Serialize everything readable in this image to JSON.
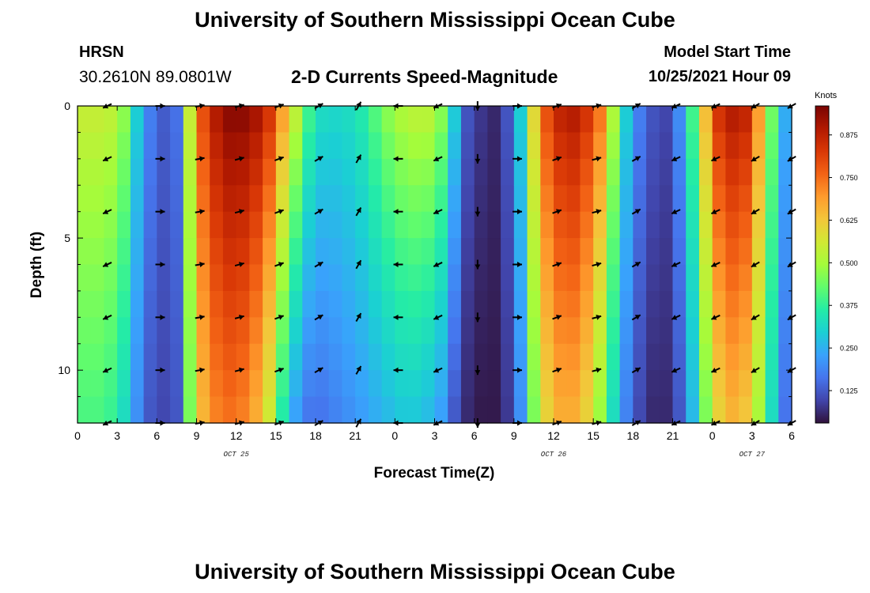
{
  "header": {
    "title": "University of Southern Mississippi Ocean Cube",
    "station": "HRSN",
    "coords": "30.2610N  89.0801W",
    "subtitle": "2-D Currents Speed-Magnitude",
    "start_label": "Model Start Time",
    "start_value": "10/25/2021 Hour 09"
  },
  "footer": {
    "title": "University of Southern Mississippi Ocean Cube"
  },
  "colors": {
    "background": "#ffffff",
    "arrow": "#000000",
    "colormap": [
      "#30123b",
      "#4145ab",
      "#4675ed",
      "#39a2fc",
      "#1bcfd4",
      "#24eca6",
      "#61fc6c",
      "#a4fc3b",
      "#d1e834",
      "#f3c63a",
      "#fe9b2d",
      "#f36315",
      "#d93806",
      "#b11901",
      "#7a0402"
    ]
  },
  "chart_data": {
    "type": "heatmap",
    "title": "2-D Currents Speed-Magnitude",
    "xlabel": "Forecast Time(Z)",
    "ylabel": "Depth (ft)",
    "x_unit": "forecast hours from 10/25 00Z",
    "xlim": [
      0,
      54
    ],
    "ylim": [
      0,
      12
    ],
    "y_inverted": true,
    "x_ticks": [
      0,
      3,
      6,
      9,
      12,
      15,
      18,
      21,
      24,
      27,
      30,
      33,
      36,
      39,
      42,
      45,
      48,
      51,
      54
    ],
    "x_tick_labels": [
      "0",
      "3",
      "6",
      "9",
      "12",
      "15",
      "18",
      "21",
      "0",
      "3",
      "6",
      "9",
      "12",
      "15",
      "18",
      "21",
      "0",
      "3",
      "6"
    ],
    "y_ticks": [
      0,
      5,
      10
    ],
    "y_tick_labels": [
      "0",
      "5",
      "10"
    ],
    "date_labels": [
      {
        "x": 12,
        "label": "OCT 25"
      },
      {
        "x": 36,
        "label": "OCT 26"
      },
      {
        "x": 51,
        "label": "OCT 27"
      }
    ],
    "colorbar": {
      "label": "Knots",
      "min": 0.03,
      "max": 0.96,
      "ticks": [
        0.125,
        0.25,
        0.375,
        0.5,
        0.625,
        0.75,
        0.875
      ],
      "tick_labels": [
        "0.125",
        "0.250",
        "0.375",
        "0.500",
        "0.625",
        "0.750",
        "0.875"
      ]
    },
    "x_bins": [
      0,
      1,
      2,
      3,
      4,
      5,
      6,
      7,
      8,
      9,
      10,
      11,
      12,
      13,
      14,
      15,
      16,
      17,
      18,
      19,
      20,
      21,
      22,
      23,
      24,
      25,
      26,
      27,
      28,
      29,
      30,
      31,
      32,
      33,
      34,
      35,
      36,
      37,
      38,
      39,
      40,
      41,
      42,
      43,
      44,
      45,
      46,
      47,
      48,
      49,
      50,
      51,
      52,
      53
    ],
    "surface_speed": [
      0.55,
      0.55,
      0.54,
      0.48,
      0.3,
      0.18,
      0.13,
      0.16,
      0.55,
      0.8,
      0.9,
      0.95,
      0.95,
      0.92,
      0.85,
      0.7,
      0.55,
      0.4,
      0.33,
      0.32,
      0.33,
      0.36,
      0.42,
      0.48,
      0.52,
      0.54,
      0.54,
      0.48,
      0.3,
      0.12,
      0.08,
      0.06,
      0.12,
      0.3,
      0.6,
      0.8,
      0.88,
      0.9,
      0.85,
      0.75,
      0.52,
      0.3,
      0.18,
      0.12,
      0.1,
      0.2,
      0.4,
      0.65,
      0.85,
      0.9,
      0.88,
      0.7,
      0.45,
      0.25
    ],
    "bottom_speed": [
      0.4,
      0.4,
      0.38,
      0.32,
      0.2,
      0.12,
      0.1,
      0.12,
      0.45,
      0.65,
      0.72,
      0.74,
      0.72,
      0.66,
      0.55,
      0.35,
      0.22,
      0.16,
      0.16,
      0.18,
      0.2,
      0.22,
      0.24,
      0.26,
      0.28,
      0.28,
      0.26,
      0.22,
      0.12,
      0.06,
      0.04,
      0.04,
      0.08,
      0.2,
      0.45,
      0.6,
      0.66,
      0.66,
      0.6,
      0.48,
      0.32,
      0.18,
      0.1,
      0.06,
      0.06,
      0.12,
      0.26,
      0.45,
      0.6,
      0.65,
      0.62,
      0.5,
      0.32,
      0.16
    ],
    "arrow_times": [
      2.25,
      6.25,
      9.25,
      12.25,
      15.25,
      18.25,
      21.25,
      24.25,
      27.25,
      30.25,
      33.25,
      36.25,
      39.25,
      42.25,
      45.25,
      48.25,
      51.25,
      54.0
    ],
    "arrow_depths": [
      0,
      2,
      4,
      6,
      8,
      10,
      12
    ],
    "arrow_dirs_deg_math": [
      205,
      0,
      10,
      15,
      20,
      30,
      60,
      180,
      205,
      270,
      0,
      20,
      15,
      30,
      205,
      205,
      210,
      210
    ],
    "arrow_units": "direction in degrees counter-clockwise from east"
  }
}
